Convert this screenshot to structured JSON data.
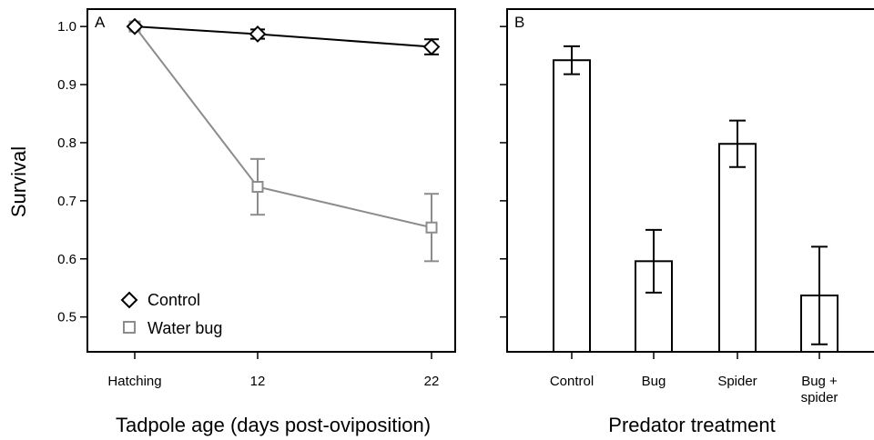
{
  "chart_data": [
    {
      "panel": "A",
      "type": "line",
      "xlabel": "Tadpole age (days post-oviposition)",
      "ylabel": "Survival",
      "categories": [
        "Hatching",
        "12",
        "22"
      ],
      "ylim": [
        0.44,
        1.03
      ],
      "yticks": [
        "0.5",
        "0.6",
        "0.7",
        "0.8",
        "0.9",
        "1.0"
      ],
      "grid": false,
      "legend_position": "bottom-left",
      "series": [
        {
          "name": "Control",
          "marker": "diamond",
          "color": "#000000",
          "values": [
            1.0,
            0.987,
            0.965
          ],
          "err": [
            0.0,
            0.008,
            0.013
          ]
        },
        {
          "name": "Water bug",
          "marker": "square",
          "color": "#8c8c8c",
          "values": [
            1.0,
            0.724,
            0.654
          ],
          "err": [
            0.0,
            0.048,
            0.058
          ]
        }
      ]
    },
    {
      "panel": "B",
      "type": "bar",
      "xlabel": "Predator treatment",
      "ylabel": "",
      "categories": [
        "Control",
        "Bug",
        "Spider",
        "Bug +\nspider"
      ],
      "values": [
        0.942,
        0.596,
        0.798,
        0.537
      ],
      "err": [
        0.024,
        0.054,
        0.04,
        0.084
      ],
      "ylim": [
        0.44,
        1.03
      ],
      "grid": false
    }
  ]
}
